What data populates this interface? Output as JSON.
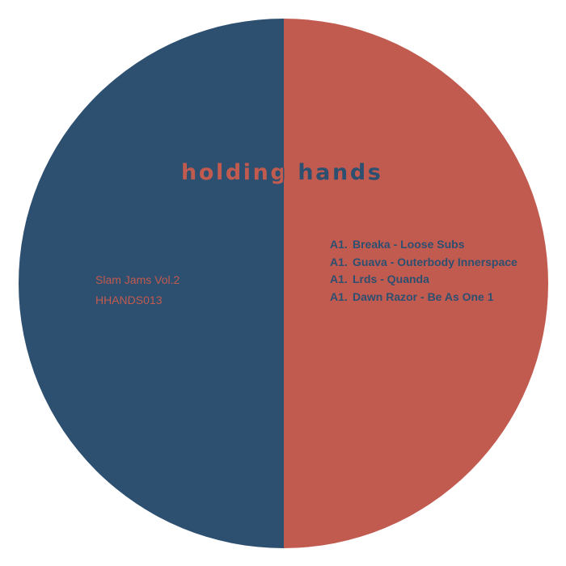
{
  "colors": {
    "background": "#ffffff",
    "navy": "#2d4f70",
    "coral": "#c15b4f"
  },
  "label": {
    "brand": "holding hands",
    "release_title": "Slam Jams Vol.2",
    "catalog_number": "HHANDS013",
    "tracks": [
      {
        "position": "A1.",
        "title": "Breaka - Loose Subs"
      },
      {
        "position": "A1.",
        "title": "Guava - Outerbody Innerspace"
      },
      {
        "position": "A1.",
        "title": "Lrds - Quanda"
      },
      {
        "position": "A1.",
        "title": "Dawn Razor - Be As One 1"
      }
    ]
  }
}
